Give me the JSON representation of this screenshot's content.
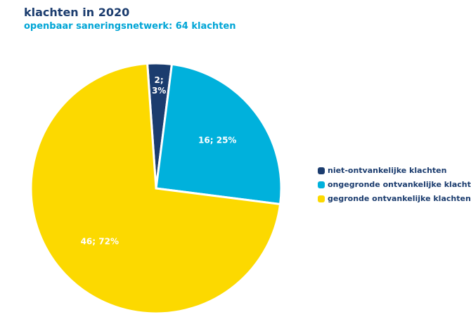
{
  "chart_data": {
    "type": "pie",
    "title": "klachten in 2020",
    "subtitle": "openbaar saneringsnetwerk: 64 klachten",
    "categories": [
      "niet-ontvankelijke klachten",
      "ongegronde ontvankelijke klachten",
      "gegronde ontvankelijke klachten"
    ],
    "values": [
      2,
      16,
      46
    ],
    "value_labels": [
      "2; 3%",
      "16; 25%",
      "46; 72%"
    ],
    "colors": [
      "#1b3c6e",
      "#00b1dc",
      "#fcd900"
    ],
    "legend": "right"
  }
}
